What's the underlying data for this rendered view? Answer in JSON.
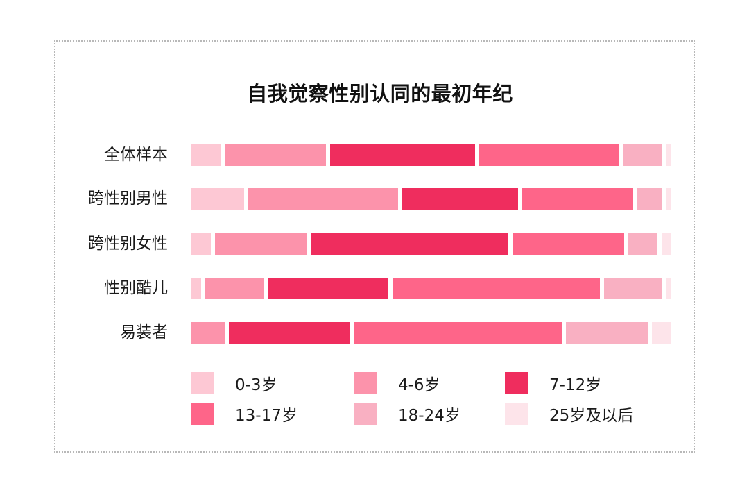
{
  "title": "自我觉察性别认同的最初年纪",
  "chart_data": {
    "type": "bar",
    "orientation": "horizontal",
    "stacked": true,
    "normalized": true,
    "title": "自我觉察性别认同的最初年纪",
    "xlabel": "",
    "ylabel": "",
    "xlim": [
      0,
      100
    ],
    "grid": false,
    "legend_position": "bottom",
    "categories": [
      "全体样本",
      "跨性别男性",
      "跨性别女性",
      "性别酷儿",
      "易装者"
    ],
    "series": [
      {
        "name": "0-3岁",
        "color": "#fdc8d4",
        "values": [
          7,
          12,
          5,
          3,
          0
        ]
      },
      {
        "name": "4-6岁",
        "color": "#fc93ab",
        "values": [
          22,
          32,
          20,
          13,
          8
        ]
      },
      {
        "name": "7-12岁",
        "color": "#ef2d5e",
        "values": [
          31,
          25,
          42,
          26,
          26
        ]
      },
      {
        "name": "13-17岁",
        "color": "#fe6589",
        "values": [
          30,
          24,
          24,
          44,
          44
        ]
      },
      {
        "name": "18-24岁",
        "color": "#f9b0c2",
        "values": [
          9,
          6,
          7,
          13,
          18
        ]
      },
      {
        "name": "25岁及以后",
        "color": "#fde4ea",
        "values": [
          1,
          1,
          2,
          1,
          4
        ]
      }
    ]
  },
  "rows": [
    {
      "label": "全体样本"
    },
    {
      "label": "跨性别男性"
    },
    {
      "label": "跨性别女性"
    },
    {
      "label": "性别酷儿"
    },
    {
      "label": "易装者"
    }
  ],
  "legend": [
    {
      "label": "0-3岁",
      "color": "#fdc8d4"
    },
    {
      "label": "4-6岁",
      "color": "#fc93ab"
    },
    {
      "label": "7-12岁",
      "color": "#ef2d5e"
    },
    {
      "label": "13-17岁",
      "color": "#fe6589"
    },
    {
      "label": "18-24岁",
      "color": "#f9b0c2"
    },
    {
      "label": "25岁及以后",
      "color": "#fde4ea"
    }
  ]
}
